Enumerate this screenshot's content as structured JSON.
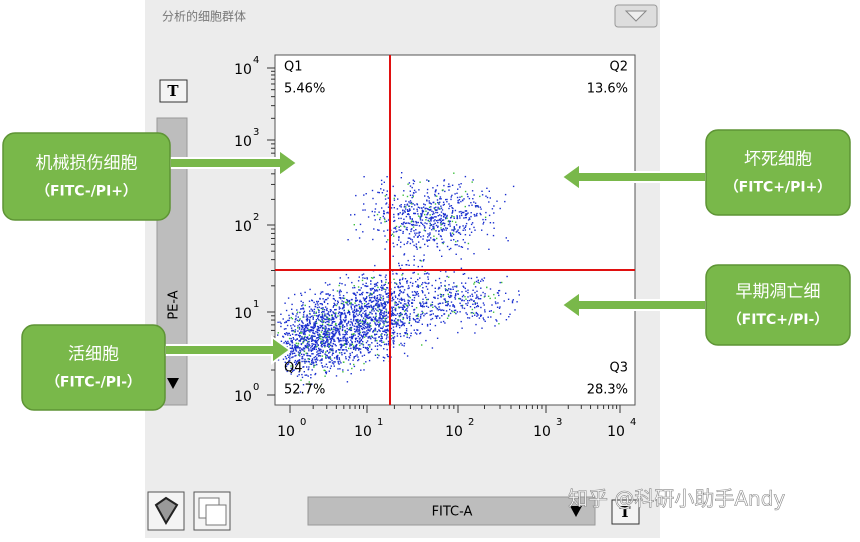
{
  "panel": {
    "title": "分析的细胞群体",
    "y_axis_label": "PE-A",
    "x_axis_label": "FITC-A"
  },
  "plot": {
    "quadrants": [
      {
        "name": "Q1",
        "percent": "5.46%"
      },
      {
        "name": "Q2",
        "percent": "13.6%"
      },
      {
        "name": "Q3",
        "percent": "28.3%"
      },
      {
        "name": "Q4",
        "percent": "52.7%"
      }
    ],
    "xticks": [
      {
        "base": "10",
        "exp": "0"
      },
      {
        "base": "10",
        "exp": "1"
      },
      {
        "base": "10",
        "exp": "2"
      },
      {
        "base": "10",
        "exp": "3"
      },
      {
        "base": "10",
        "exp": "4"
      }
    ],
    "yticks": [
      {
        "base": "10",
        "exp": "0"
      },
      {
        "base": "10",
        "exp": "1"
      },
      {
        "base": "10",
        "exp": "2"
      },
      {
        "base": "10",
        "exp": "3"
      },
      {
        "base": "10",
        "exp": "4"
      }
    ]
  },
  "callouts": [
    {
      "title": "机械损伤细胞",
      "sub": "（FITC-/PI+）"
    },
    {
      "title": "坏死细胞",
      "sub": "（FITC+/PI+）"
    },
    {
      "title": "早期凋亡细",
      "sub": "（FITC+/PI-）"
    },
    {
      "title": "活细胞",
      "sub": "（FITC-/PI-）"
    }
  ],
  "watermark": "知乎 @科研小助手Andy"
}
